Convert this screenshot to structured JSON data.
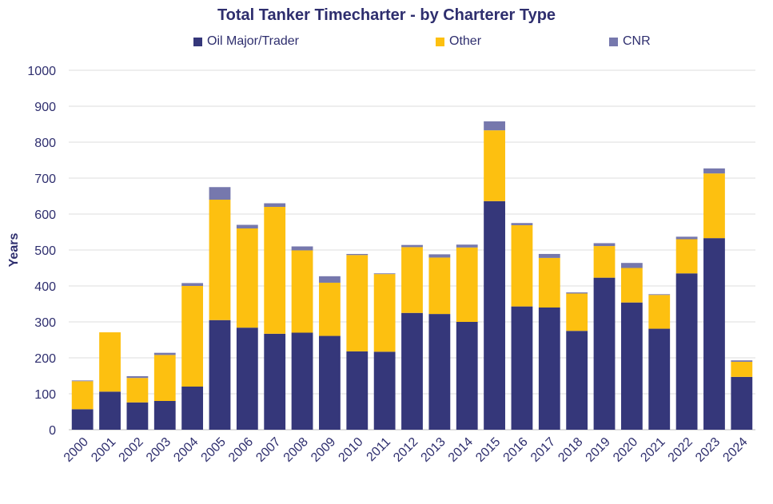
{
  "chart_data": {
    "type": "bar",
    "stacked": true,
    "title": "Total Tanker Timecharter - by Charterer Type",
    "xlabel": "",
    "ylabel": "Years",
    "ylim": [
      0,
      1000
    ],
    "yticks": [
      0,
      100,
      200,
      300,
      400,
      500,
      600,
      700,
      800,
      900,
      1000
    ],
    "grid": true,
    "legend_position": "top",
    "categories": [
      "2000",
      "2001",
      "2002",
      "2003",
      "2004",
      "2005",
      "2006",
      "2007",
      "2008",
      "2009",
      "2010",
      "2011",
      "2012",
      "2013",
      "2014",
      "2015",
      "2016",
      "2017",
      "2018",
      "2019",
      "2020",
      "2021",
      "2022",
      "2023",
      "2024"
    ],
    "series": [
      {
        "name": "Oil Major/Trader",
        "color": "#35377a",
        "values": [
          57,
          106,
          76,
          80,
          120,
          305,
          284,
          267,
          270,
          261,
          218,
          217,
          325,
          322,
          300,
          636,
          343,
          340,
          275,
          423,
          354,
          281,
          435,
          533,
          147
        ]
      },
      {
        "name": "Other",
        "color": "#fdc010",
        "values": [
          78,
          165,
          68,
          128,
          280,
          335,
          276,
          353,
          229,
          148,
          268,
          216,
          183,
          157,
          207,
          197,
          226,
          138,
          104,
          88,
          96,
          94,
          95,
          180,
          42
        ]
      },
      {
        "name": "CNR",
        "color": "#7678ad",
        "values": [
          2,
          0,
          5,
          6,
          8,
          35,
          10,
          10,
          11,
          18,
          3,
          2,
          6,
          9,
          8,
          25,
          6,
          11,
          3,
          8,
          14,
          2,
          7,
          14,
          4
        ]
      }
    ]
  }
}
